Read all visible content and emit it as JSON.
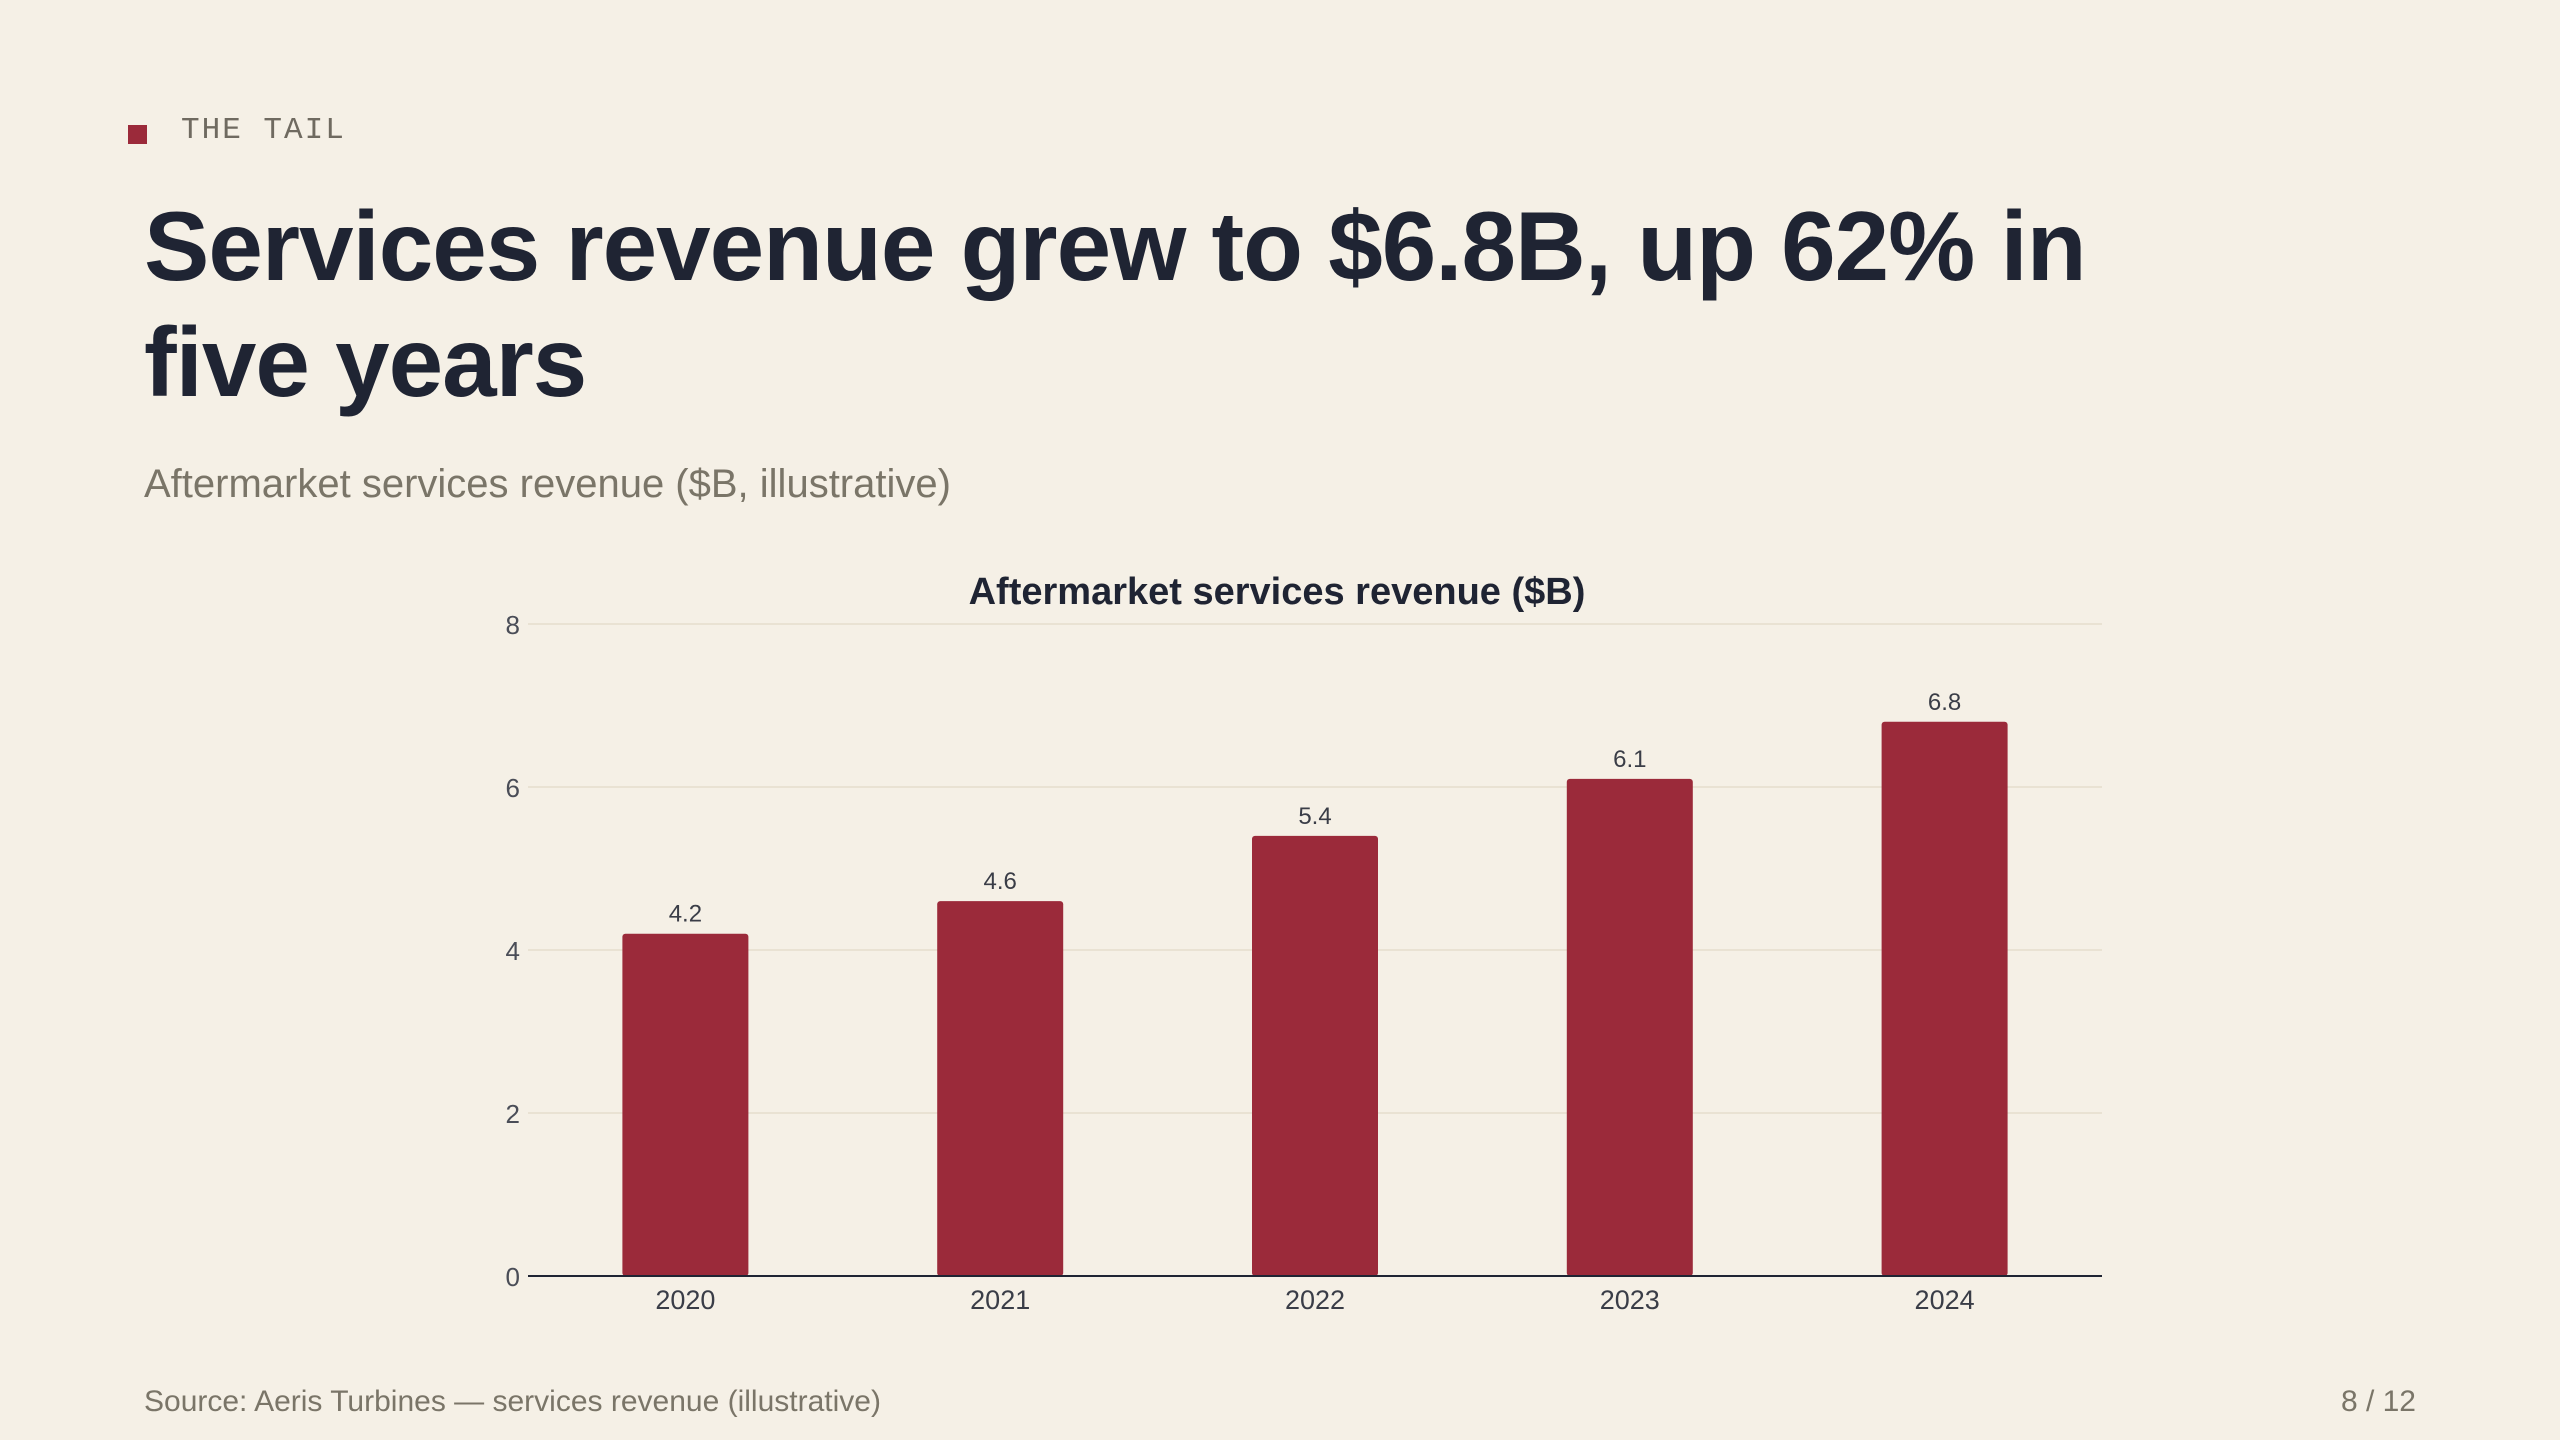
{
  "kicker": "THE TAIL",
  "headline": "Services revenue grew to $6.8B, up 62% in five years",
  "subtitle": "Aftermarket services revenue ($B, illustrative)",
  "footer": {
    "source": "Source: Aeris Turbines — services revenue (illustrative)",
    "page": "8 / 12"
  },
  "colors": {
    "background": "#f5f0e6",
    "bar": "#9b2a3a",
    "text": "#1f2433",
    "muted": "#7a7568"
  },
  "chart_data": {
    "type": "bar",
    "title": "Aftermarket services revenue ($B)",
    "categories": [
      "2020",
      "2021",
      "2022",
      "2023",
      "2024"
    ],
    "values": [
      4.2,
      4.6,
      5.4,
      6.1,
      6.8
    ],
    "value_labels": [
      "4.2",
      "4.6",
      "5.4",
      "6.1",
      "6.8"
    ],
    "yticks": [
      0,
      2,
      4,
      6,
      8
    ],
    "ylim": [
      0,
      8
    ],
    "xlabel": "",
    "ylabel": "",
    "grid": true,
    "legend": "none"
  }
}
